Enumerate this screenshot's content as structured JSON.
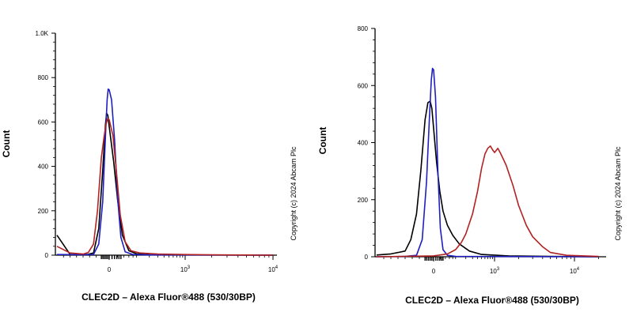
{
  "chart_data": [
    {
      "type": "line",
      "ylabel": "Count",
      "xlabel": "CLEC2D – Alexa Fluor®488 (530/30BP)",
      "copyright": "Copyright (c) 2024 Abcam Plc",
      "ylim": [
        0,
        1000
      ],
      "y_ticks": [
        {
          "v": 0,
          "label": "0"
        },
        {
          "v": 200,
          "label": "200"
        },
        {
          "v": 400,
          "label": "400"
        },
        {
          "v": 600,
          "label": "600"
        },
        {
          "v": 800,
          "label": "800"
        },
        {
          "v": 1000,
          "label": "1.0K"
        }
      ],
      "x_ticks": [
        {
          "v": 0,
          "label": "0"
        },
        {
          "v": 1000,
          "label": "10",
          "exp": "3"
        },
        {
          "v": 10000,
          "label": "10",
          "exp": "4"
        }
      ],
      "series": [
        {
          "color": "#000000",
          "points": [
            [
              -200,
              90
            ],
            [
              -150,
              4
            ],
            [
              -100,
              3
            ],
            [
              -80,
              4
            ],
            [
              -60,
              10
            ],
            [
              -40,
              120
            ],
            [
              -25,
              380
            ],
            [
              -15,
              580
            ],
            [
              -10,
              640
            ],
            [
              -5,
              630
            ],
            [
              0,
              580
            ],
            [
              10,
              420
            ],
            [
              20,
              250
            ],
            [
              35,
              90
            ],
            [
              60,
              20
            ],
            [
              100,
              6
            ],
            [
              200,
              2
            ],
            [
              1000,
              1
            ],
            [
              10000,
              0
            ]
          ]
        },
        {
          "color": "#1f1fbf",
          "points": [
            [
              -200,
              3
            ],
            [
              -100,
              2
            ],
            [
              -60,
              3
            ],
            [
              -40,
              50
            ],
            [
              -25,
              240
            ],
            [
              -15,
              520
            ],
            [
              -8,
              700
            ],
            [
              -4,
              748
            ],
            [
              0,
              745
            ],
            [
              5,
              700
            ],
            [
              12,
              520
            ],
            [
              20,
              260
            ],
            [
              30,
              80
            ],
            [
              45,
              15
            ],
            [
              80,
              3
            ],
            [
              200,
              1
            ],
            [
              10000,
              0
            ]
          ]
        },
        {
          "color": "#b22222",
          "points": [
            [
              -200,
              40
            ],
            [
              -150,
              10
            ],
            [
              -100,
              5
            ],
            [
              -80,
              12
            ],
            [
              -60,
              50
            ],
            [
              -45,
              200
            ],
            [
              -30,
              440
            ],
            [
              -20,
              530
            ],
            [
              -12,
              590
            ],
            [
              -6,
              615
            ],
            [
              0,
              610
            ],
            [
              8,
              540
            ],
            [
              16,
              390
            ],
            [
              28,
              180
            ],
            [
              45,
              60
            ],
            [
              70,
              20
            ],
            [
              120,
              10
            ],
            [
              300,
              5
            ],
            [
              1000,
              3
            ],
            [
              3000,
              1
            ],
            [
              10000,
              0
            ]
          ]
        }
      ]
    },
    {
      "type": "line",
      "ylabel": "Count",
      "xlabel": "CLEC2D – Alexa Fluor®488 (530/30BP)",
      "copyright": "Copyright (c) 2024 Abcam Plc",
      "ylim": [
        0,
        800
      ],
      "y_ticks": [
        {
          "v": 0,
          "label": "0"
        },
        {
          "v": 200,
          "label": "200"
        },
        {
          "v": 400,
          "label": "400"
        },
        {
          "v": 600,
          "label": "600"
        },
        {
          "v": 800,
          "label": "800"
        }
      ],
      "x_ticks": [
        {
          "v": 0,
          "label": "0"
        },
        {
          "v": 1000,
          "label": "10",
          "exp": "3"
        },
        {
          "v": 10000,
          "label": "10",
          "exp": "4"
        }
      ],
      "series": [
        {
          "color": "#000000",
          "points": [
            [
              -200,
              6
            ],
            [
              -150,
              10
            ],
            [
              -100,
              20
            ],
            [
              -80,
              60
            ],
            [
              -60,
              150
            ],
            [
              -45,
              300
            ],
            [
              -30,
              480
            ],
            [
              -20,
              540
            ],
            [
              -12,
              545
            ],
            [
              -6,
              520
            ],
            [
              0,
              450
            ],
            [
              8,
              330
            ],
            [
              18,
              230
            ],
            [
              30,
              160
            ],
            [
              50,
              110
            ],
            [
              80,
              75
            ],
            [
              130,
              45
            ],
            [
              250,
              20
            ],
            [
              500,
              8
            ],
            [
              1500,
              3
            ],
            [
              5000,
              1
            ],
            [
              20000,
              0
            ]
          ]
        },
        {
          "color": "#1f1fbf",
          "points": [
            [
              -200,
              0
            ],
            [
              -100,
              1
            ],
            [
              -60,
              5
            ],
            [
              -40,
              60
            ],
            [
              -25,
              260
            ],
            [
              -15,
              480
            ],
            [
              -8,
              620
            ],
            [
              -4,
              660
            ],
            [
              0,
              655
            ],
            [
              5,
              560
            ],
            [
              12,
              300
            ],
            [
              20,
              100
            ],
            [
              30,
              25
            ],
            [
              50,
              5
            ],
            [
              100,
              1
            ],
            [
              20000,
              0
            ]
          ]
        },
        {
          "color": "#b22222",
          "points": [
            [
              -200,
              0
            ],
            [
              0,
              3
            ],
            [
              50,
              10
            ],
            [
              100,
              25
            ],
            [
              150,
              50
            ],
            [
              200,
              80
            ],
            [
              300,
              150
            ],
            [
              400,
              230
            ],
            [
              500,
              310
            ],
            [
              600,
              360
            ],
            [
              700,
              380
            ],
            [
              800,
              388
            ],
            [
              900,
              375
            ],
            [
              1000,
              365
            ],
            [
              1100,
              380
            ],
            [
              1200,
              360
            ],
            [
              1400,
              320
            ],
            [
              1700,
              250
            ],
            [
              2000,
              180
            ],
            [
              2500,
              110
            ],
            [
              3000,
              70
            ],
            [
              4000,
              35
            ],
            [
              5000,
              15
            ],
            [
              8000,
              5
            ],
            [
              20000,
              1
            ]
          ]
        }
      ]
    }
  ]
}
